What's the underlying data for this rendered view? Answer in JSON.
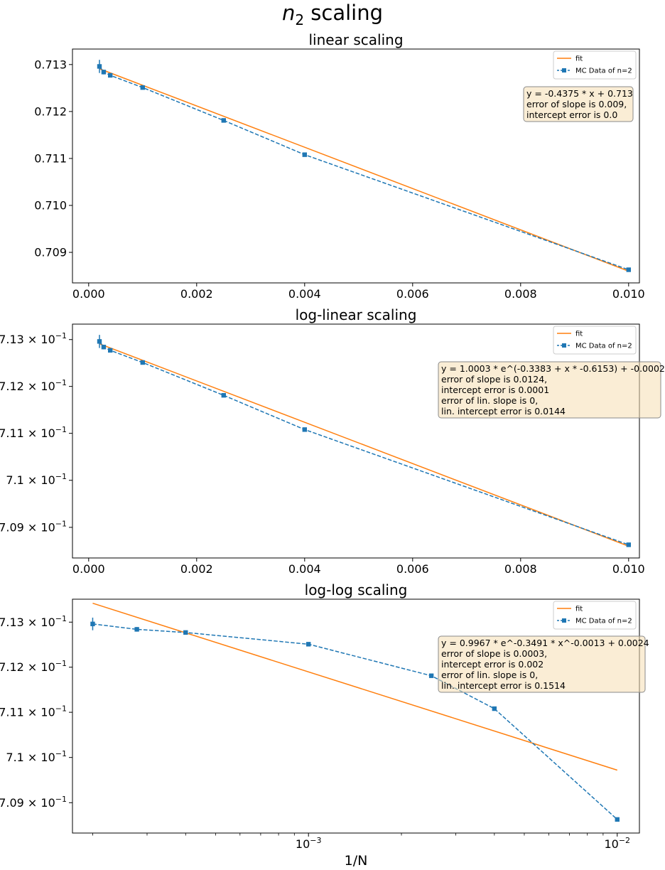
{
  "suptitle": {
    "main": "n",
    "sub": "2",
    "rest": " scaling"
  },
  "colors": {
    "data": "#1f77b4",
    "fit": "#ff7f0e",
    "box_fill": "#f5deb3",
    "box_edge": "#8a8a8a"
  },
  "chart_data": [
    {
      "type": "line",
      "title": "linear scaling",
      "xscale": "linear",
      "yscale": "linear",
      "xlim": [
        -0.0003,
        0.0102
      ],
      "ylim": [
        0.70835,
        0.71333
      ],
      "xticks": [
        {
          "v": 0.0,
          "label": "0.000"
        },
        {
          "v": 0.002,
          "label": "0.002"
        },
        {
          "v": 0.004,
          "label": "0.004"
        },
        {
          "v": 0.006,
          "label": "0.006"
        },
        {
          "v": 0.008,
          "label": "0.008"
        },
        {
          "v": 0.01,
          "label": "0.010"
        }
      ],
      "yticks": [
        {
          "v": 0.709,
          "label": "0.709"
        },
        {
          "v": 0.71,
          "label": "0.710"
        },
        {
          "v": 0.711,
          "label": "0.711"
        },
        {
          "v": 0.712,
          "label": "0.712"
        },
        {
          "v": 0.713,
          "label": "0.713"
        }
      ],
      "series": [
        {
          "name": "MC Data of n=2",
          "style": "dashed-square",
          "x": [
            0.0002,
            0.000278,
            0.0004,
            0.001,
            0.0025,
            0.004,
            0.01
          ],
          "y": [
            0.71296,
            0.71284,
            0.71277,
            0.71251,
            0.71181,
            0.71108,
            0.70863
          ],
          "yerr": [
            0.00014,
            5e-05,
            4e-05,
            4e-05,
            3e-05,
            3e-05,
            4e-05
          ]
        },
        {
          "name": "fit",
          "style": "solid",
          "x": [
            0.0002,
            0.01
          ],
          "y": [
            0.71291,
            0.7086
          ]
        }
      ],
      "legend": {
        "placement": "top-right",
        "entries": [
          "fit",
          "MC Data of n=2"
        ]
      },
      "annotation": [
        "y = -0.4375 * x + 0.713",
        "error of slope is 0.009,",
        "intercept error is 0.0"
      ]
    },
    {
      "type": "line",
      "title": "log-linear scaling",
      "xscale": "linear",
      "yscale": "log",
      "xlim": [
        -0.0003,
        0.0102
      ],
      "ylim": [
        0.70835,
        0.71333
      ],
      "xticks": [
        {
          "v": 0.0,
          "label": "0.000"
        },
        {
          "v": 0.002,
          "label": "0.002"
        },
        {
          "v": 0.004,
          "label": "0.004"
        },
        {
          "v": 0.006,
          "label": "0.006"
        },
        {
          "v": 0.008,
          "label": "0.008"
        },
        {
          "v": 0.01,
          "label": "0.010"
        }
      ],
      "yticks": [
        {
          "v": 0.709,
          "mant": "7.09",
          "exp": "−1"
        },
        {
          "v": 0.71,
          "mant": "7.1",
          "exp": "−1"
        },
        {
          "v": 0.711,
          "mant": "7.11",
          "exp": "−1"
        },
        {
          "v": 0.712,
          "mant": "7.12",
          "exp": "−1"
        },
        {
          "v": 0.713,
          "mant": "7.13",
          "exp": "−1"
        }
      ],
      "series": [
        {
          "name": "MC Data of n=2",
          "style": "dashed-square",
          "x": [
            0.0002,
            0.000278,
            0.0004,
            0.001,
            0.0025,
            0.004,
            0.01
          ],
          "y": [
            0.71296,
            0.71284,
            0.71277,
            0.71251,
            0.71181,
            0.71108,
            0.70863
          ],
          "yerr": [
            0.00014,
            5e-05,
            4e-05,
            4e-05,
            3e-05,
            3e-05,
            4e-05
          ]
        },
        {
          "name": "fit",
          "style": "solid",
          "x": [
            0.0002,
            0.01
          ],
          "y": [
            0.71291,
            0.7086
          ]
        }
      ],
      "legend": {
        "placement": "top-right",
        "entries": [
          "fit",
          "MC Data of n=2"
        ]
      },
      "annotation": [
        "y = 1.0003 * e^(-0.3383 + x * -0.6153) + -0.0002",
        "error of slope is 0.0124,",
        "intercept error is 0.0001",
        "error of lin. slope is 0,",
        "lin. intercept error is 0.0144"
      ]
    },
    {
      "type": "line",
      "title": "log-log scaling",
      "xlabel": "1/N",
      "xscale": "log",
      "yscale": "log",
      "xlim": [
        0.000172,
        0.0118
      ],
      "ylim": [
        0.70833,
        0.71351
      ],
      "xticks": [
        {
          "v": 0.001,
          "mant": "10",
          "exp": "−3"
        },
        {
          "v": 0.01,
          "mant": "10",
          "exp": "−2"
        }
      ],
      "yticks": [
        {
          "v": 0.709,
          "mant": "7.09",
          "exp": "−1"
        },
        {
          "v": 0.71,
          "mant": "7.1",
          "exp": "−1"
        },
        {
          "v": 0.711,
          "mant": "7.11",
          "exp": "−1"
        },
        {
          "v": 0.712,
          "mant": "7.12",
          "exp": "−1"
        },
        {
          "v": 0.713,
          "mant": "7.13",
          "exp": "−1"
        }
      ],
      "series": [
        {
          "name": "MC Data of n=2",
          "style": "dashed-square",
          "x": [
            0.0002,
            0.000278,
            0.0004,
            0.001,
            0.0025,
            0.004,
            0.01
          ],
          "y": [
            0.71296,
            0.71284,
            0.71277,
            0.71251,
            0.71181,
            0.71108,
            0.70863
          ],
          "yerr": [
            0.00014,
            5e-05,
            4e-05,
            4e-05,
            3e-05,
            3e-05,
            4e-05
          ]
        },
        {
          "name": "fit",
          "style": "solid",
          "x": [
            0.0002,
            0.01
          ],
          "y": [
            0.71342,
            0.70972
          ]
        }
      ],
      "legend": {
        "placement": "top-right",
        "entries": [
          "fit",
          "MC Data of n=2"
        ]
      },
      "annotation": [
        "y = 0.9967 * e^-0.3491 * x^-0.0013 + 0.0024",
        "error of slope is 0.0003,",
        "intercept error is 0.002",
        "error of lin. slope is 0,",
        "lin. intercept error is 0.1514"
      ]
    }
  ]
}
